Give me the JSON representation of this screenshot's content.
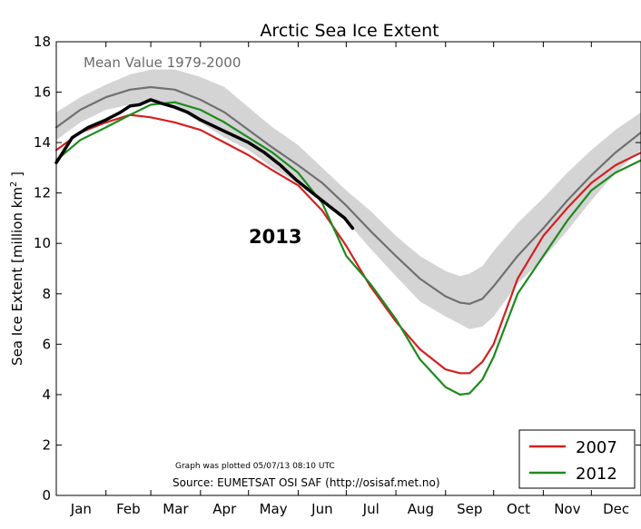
{
  "chart_data": {
    "type": "line",
    "title": "Arctic Sea Ice Extent",
    "ylabel": "Sea Ice Extent [million km",
    "ylabel_sup": "2",
    "ylabel_end": " ]",
    "ylim": [
      0,
      18
    ],
    "yticks": [
      0,
      2,
      4,
      6,
      8,
      10,
      12,
      14,
      16,
      18
    ],
    "xlim": [
      0,
      365
    ],
    "months": [
      "Jan",
      "Feb",
      "Mar",
      "Apr",
      "May",
      "Jun",
      "Jul",
      "Aug",
      "Sep",
      "Oct",
      "Nov",
      "Dec"
    ],
    "grid": false,
    "legend_position": "bottom-right",
    "annotations": {
      "mean_label": "Mean Value 1979-2000",
      "year_label": "2013",
      "plotted": "Graph was plotted 05/07/13 08:10 UTC",
      "source": "Source: EUMETSAT OSI SAF (http://osisaf.met.no)"
    },
    "band": {
      "x": [
        0,
        15,
        31,
        46,
        59,
        74,
        90,
        105,
        120,
        135,
        151,
        166,
        181,
        196,
        212,
        227,
        243,
        252,
        258,
        266,
        273,
        288,
        304,
        319,
        334,
        349,
        365
      ],
      "upper": [
        15.2,
        15.8,
        16.3,
        16.7,
        16.9,
        16.9,
        16.6,
        16.2,
        15.4,
        14.6,
        13.9,
        13.0,
        12.1,
        11.3,
        10.3,
        9.5,
        8.9,
        8.7,
        8.8,
        9.1,
        9.7,
        10.8,
        11.8,
        12.8,
        13.7,
        14.5,
        15.2
      ],
      "lower": [
        14.1,
        14.8,
        15.3,
        15.5,
        15.6,
        15.4,
        14.8,
        14.2,
        13.7,
        13.0,
        12.4,
        11.7,
        10.9,
        9.8,
        8.7,
        7.7,
        7.1,
        6.8,
        6.6,
        6.7,
        7.1,
        8.4,
        9.4,
        10.5,
        11.7,
        12.8,
        13.7
      ]
    },
    "series": [
      {
        "name": "Mean",
        "color": "#707070",
        "x": [
          0,
          15,
          31,
          46,
          59,
          74,
          90,
          105,
          120,
          135,
          151,
          166,
          181,
          196,
          212,
          227,
          243,
          252,
          258,
          266,
          273,
          288,
          304,
          319,
          334,
          349,
          365
        ],
        "values": [
          14.6,
          15.3,
          15.8,
          16.1,
          16.2,
          16.1,
          15.7,
          15.2,
          14.5,
          13.8,
          13.1,
          12.4,
          11.5,
          10.5,
          9.5,
          8.6,
          7.9,
          7.65,
          7.6,
          7.8,
          8.3,
          9.5,
          10.6,
          11.7,
          12.7,
          13.6,
          14.4
        ]
      },
      {
        "name": "2007",
        "color": "#d42020",
        "x": [
          0,
          15,
          31,
          46,
          59,
          74,
          90,
          105,
          120,
          135,
          151,
          166,
          181,
          196,
          212,
          227,
          243,
          252,
          258,
          266,
          273,
          288,
          304,
          319,
          334,
          349,
          365
        ],
        "values": [
          13.7,
          14.4,
          14.8,
          15.1,
          15.0,
          14.8,
          14.5,
          14.0,
          13.5,
          12.9,
          12.3,
          11.3,
          9.9,
          8.3,
          6.9,
          5.8,
          5.0,
          4.85,
          4.85,
          5.3,
          6.0,
          8.6,
          10.3,
          11.4,
          12.4,
          13.1,
          13.6
        ]
      },
      {
        "name": "2012",
        "color": "#1e8a1e",
        "x": [
          0,
          15,
          31,
          46,
          59,
          74,
          90,
          105,
          120,
          135,
          151,
          166,
          181,
          196,
          212,
          227,
          243,
          252,
          258,
          266,
          273,
          288,
          304,
          319,
          334,
          349,
          365
        ],
        "values": [
          13.3,
          14.1,
          14.6,
          15.1,
          15.5,
          15.6,
          15.3,
          14.8,
          14.2,
          13.6,
          12.8,
          11.6,
          9.5,
          8.4,
          7.0,
          5.4,
          4.3,
          4.0,
          4.05,
          4.6,
          5.5,
          8.0,
          9.5,
          10.9,
          12.1,
          12.8,
          13.3
        ]
      },
      {
        "name": "2013",
        "color": "#000000",
        "x": [
          0,
          10,
          20,
          31,
          40,
          46,
          52,
          59,
          66,
          74,
          82,
          90,
          100,
          110,
          120,
          130,
          140,
          150,
          160,
          170,
          180,
          185
        ],
        "values": [
          13.2,
          14.2,
          14.6,
          14.9,
          15.2,
          15.45,
          15.5,
          15.7,
          15.55,
          15.4,
          15.2,
          14.9,
          14.6,
          14.3,
          14.0,
          13.6,
          13.1,
          12.5,
          12.0,
          11.5,
          11.0,
          10.6
        ]
      }
    ],
    "legend": [
      "2007",
      "2012"
    ]
  }
}
